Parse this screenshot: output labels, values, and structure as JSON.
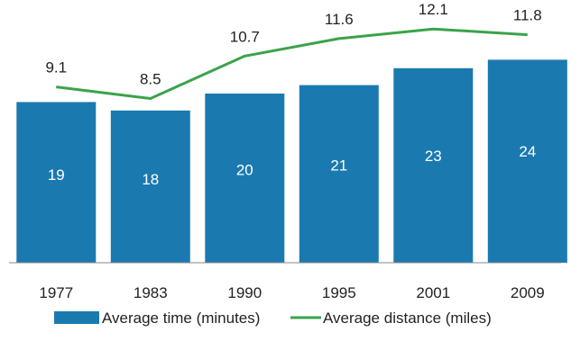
{
  "chart_data": {
    "type": "bar",
    "categories": [
      "1977",
      "1983",
      "1990",
      "1995",
      "2001",
      "2009"
    ],
    "series": [
      {
        "name": "Average time (minutes)",
        "type": "bar",
        "values": [
          19,
          18,
          20,
          21,
          23,
          24
        ],
        "color": "#1a7ab0"
      },
      {
        "name": "Average distance (miles)",
        "type": "line",
        "values": [
          9.1,
          8.5,
          10.7,
          11.6,
          12.1,
          11.8
        ],
        "color": "#3aa34a"
      }
    ],
    "ylim_bar": [
      0,
      26
    ],
    "ylim_line": [
      0,
      13.6
    ],
    "legend_position": "bottom",
    "grid": false,
    "colors": {
      "axis": "#888888",
      "text": "#222222",
      "bar_label": "#ffffff"
    }
  }
}
